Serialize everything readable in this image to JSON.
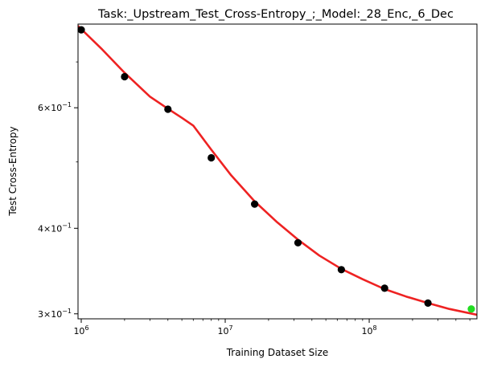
{
  "chart_data": {
    "type": "scatter",
    "title": "Task:_Upstream_Test_Cross-Entropy_;_Model:_28_Enc,_6_Dec",
    "xlabel": "Training Dataset Size",
    "ylabel": "Test Cross-Entropy",
    "x_scale": "log",
    "y_scale": "log",
    "xlim": [
      950000,
      560000000
    ],
    "ylim": [
      0.295,
      0.795
    ],
    "x_ticks": [
      {
        "value": 1000000,
        "base": "10",
        "exp": "6"
      },
      {
        "value": 10000000,
        "base": "10",
        "exp": "7"
      },
      {
        "value": 100000000,
        "base": "10",
        "exp": "8"
      }
    ],
    "y_ticks": [
      {
        "value": 0.3,
        "mant": "3",
        "exp": "−1"
      },
      {
        "value": 0.4,
        "mant": "4",
        "exp": "−1"
      },
      {
        "value": 0.6,
        "mant": "6",
        "exp": "−1"
      }
    ],
    "series": [
      {
        "color": "#000000",
        "marker": "circle",
        "x": [
          1000000,
          2000000,
          4000000,
          8000000,
          16000000,
          32000000,
          64000000,
          128000000,
          256000000
        ],
        "y": [
          0.78,
          0.666,
          0.597,
          0.507,
          0.434,
          0.381,
          0.348,
          0.327,
          0.311
        ]
      },
      {
        "color": "#22dd22",
        "marker": "circle",
        "x": [
          512000000
        ],
        "y": [
          0.305
        ]
      },
      {
        "color": "#ee2222",
        "marker": "line",
        "x": [
          950000,
          1400000,
          2000000,
          3000000,
          4000000,
          5000000,
          6000000,
          8000000,
          11000000,
          16000000,
          23000000,
          32000000,
          45000000,
          64000000,
          90000000,
          128000000,
          180000000,
          256000000,
          360000000,
          560000000
        ],
        "y": [
          0.79,
          0.73,
          0.675,
          0.623,
          0.598,
          0.58,
          0.565,
          0.521,
          0.478,
          0.438,
          0.408,
          0.385,
          0.365,
          0.349,
          0.337,
          0.326,
          0.318,
          0.311,
          0.305,
          0.299
        ]
      }
    ]
  }
}
